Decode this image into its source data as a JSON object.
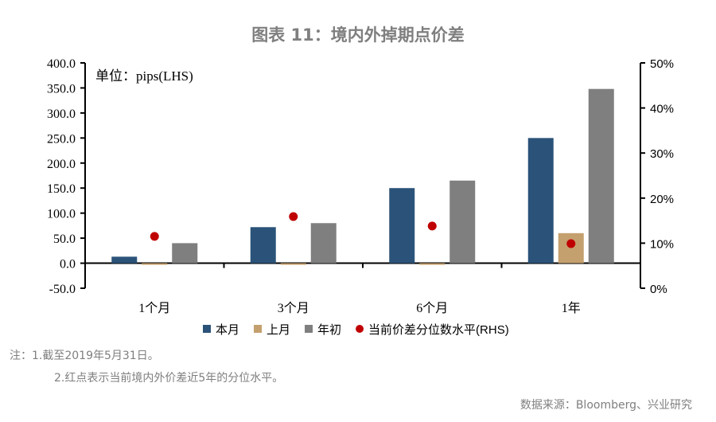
{
  "chart_data": {
    "type": "bar",
    "title": "图表 11：境内外掉期点价差",
    "unit_label": "单位：pips(LHS)",
    "categories": [
      "1个月",
      "3个月",
      "6个月",
      "1年"
    ],
    "series": [
      {
        "name": "本月",
        "values": [
          13,
          72,
          150,
          250
        ],
        "color": "#2b5379",
        "axis": "left"
      },
      {
        "name": "上月",
        "values": [
          -3,
          -1,
          -3,
          60
        ],
        "color": "#c4a06e",
        "axis": "left"
      },
      {
        "name": "年初",
        "values": [
          40,
          80,
          165,
          348
        ],
        "color": "#7f7f7f",
        "axis": "left"
      },
      {
        "name": "当前价差分位数水平(RHS)",
        "values": [
          11.5,
          15.9,
          13.8,
          9.9
        ],
        "color": "#c00000",
        "axis": "right",
        "mark": "dot"
      }
    ],
    "left_axis": {
      "ylim": [
        -50,
        400
      ],
      "ticks": [
        "400.0",
        "350.0",
        "300.0",
        "250.0",
        "200.0",
        "150.0",
        "100.0",
        "50.0",
        "0.0",
        "-50.0"
      ]
    },
    "right_axis": {
      "ylim": [
        0,
        50
      ],
      "ticks": [
        "50%",
        "40%",
        "30%",
        "20%",
        "10%",
        "0%"
      ]
    },
    "grid": false,
    "legend": "bottom"
  },
  "notes": {
    "line1": "注：1.截至2019年5月31日。",
    "line2": "2.红点表示当前境内外价差近5年的分位水平。",
    "source": "数据来源：Bloomberg、兴业研究"
  }
}
